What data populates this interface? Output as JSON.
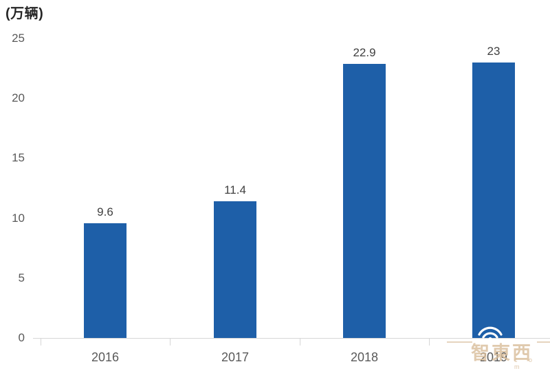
{
  "title": "(万辆)",
  "watermark": {
    "text": "智東西",
    "suffix": "c o m",
    "color": "#d9bd9b",
    "icon": "wifi-signal-icon"
  },
  "colors": {
    "bar": "#1e5fa8",
    "axis_line": "#d6d6d6",
    "axis_tick_label": "#595959",
    "value_label": "#404040",
    "title": "#262626"
  },
  "chart_data": {
    "type": "bar",
    "title": "(万辆)",
    "categories": [
      "2016",
      "2017",
      "2018",
      "2019"
    ],
    "values": [
      9.6,
      11.4,
      22.9,
      23
    ],
    "value_labels": [
      "9.6",
      "11.4",
      "22.9",
      "23"
    ],
    "xlabel": "",
    "ylabel": "(万辆)",
    "ylim": [
      0,
      25
    ],
    "yticks": [
      0,
      5,
      10,
      15,
      20,
      25
    ],
    "grid": false,
    "legend": null,
    "bar_color": "#1e5fa8",
    "data_labels_shown": true
  }
}
